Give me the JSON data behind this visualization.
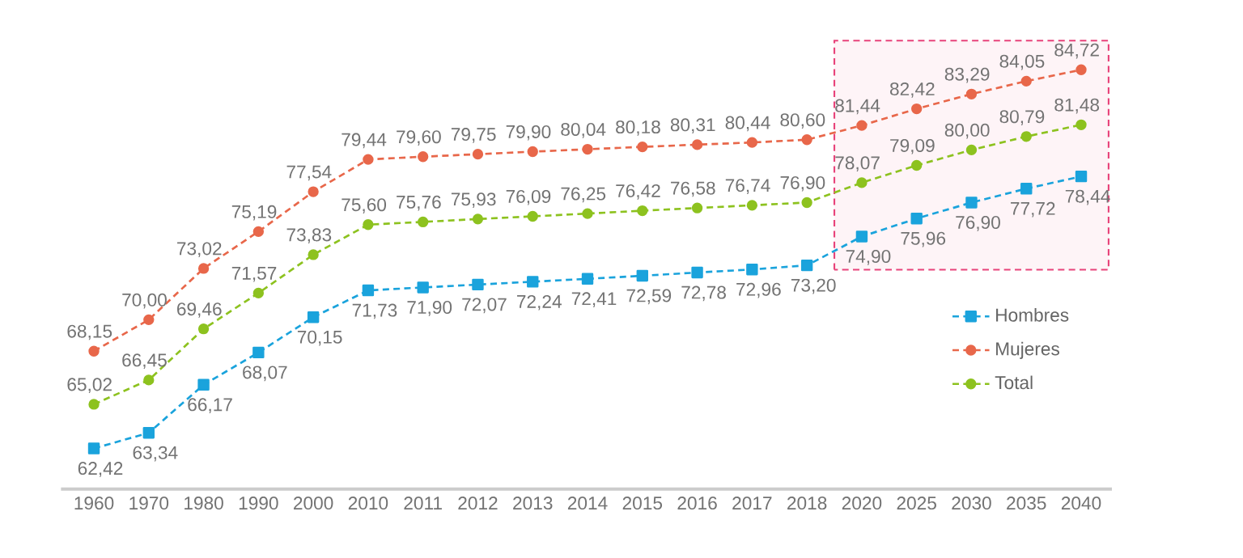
{
  "chart_data": {
    "type": "line",
    "categories": [
      "1960",
      "1970",
      "1980",
      "1990",
      "2000",
      "2010",
      "2011",
      "2012",
      "2013",
      "2014",
      "2015",
      "2016",
      "2017",
      "2018",
      "2020",
      "2025",
      "2030",
      "2035",
      "2040"
    ],
    "series": [
      {
        "name": "Hombres",
        "color": "#1aa3dc",
        "marker": "square",
        "values": [
          62.42,
          63.34,
          66.17,
          68.07,
          70.15,
          71.73,
          71.9,
          72.07,
          72.24,
          72.41,
          72.59,
          72.78,
          72.96,
          73.2,
          74.9,
          75.96,
          76.9,
          77.72,
          78.44
        ],
        "value_labels": [
          "62,42",
          "63,34",
          "66,17",
          "68,07",
          "70,15",
          "71,73",
          "71,90",
          "72,07",
          "72,24",
          "72,41",
          "72,59",
          "72,78",
          "72,96",
          "73,20",
          "74,90",
          "75,96",
          "76,90",
          "77,72",
          "78,44"
        ]
      },
      {
        "name": "Mujeres",
        "color": "#e8674a",
        "marker": "circle",
        "values": [
          68.15,
          70.0,
          73.02,
          75.19,
          77.54,
          79.44,
          79.6,
          79.75,
          79.9,
          80.04,
          80.18,
          80.31,
          80.44,
          80.6,
          81.44,
          82.42,
          83.29,
          84.05,
          84.72
        ],
        "value_labels": [
          "68,15",
          "70,00",
          "73,02",
          "75,19",
          "77,54",
          "79,44",
          "79,60",
          "79,75",
          "79,90",
          "80,04",
          "80,18",
          "80,31",
          "80,44",
          "80,60",
          "81,44",
          "82,42",
          "83,29",
          "84,05",
          "84,72"
        ]
      },
      {
        "name": "Total",
        "color": "#8dc21f",
        "marker": "circle",
        "values": [
          65.02,
          66.45,
          69.46,
          71.57,
          73.83,
          75.6,
          75.76,
          75.93,
          76.09,
          76.25,
          76.42,
          76.58,
          76.74,
          76.9,
          78.07,
          79.09,
          80.0,
          80.79,
          81.48
        ],
        "value_labels": [
          "65,02",
          "66,45",
          "69,46",
          "71,57",
          "73,83",
          "75,60",
          "75,76",
          "75,93",
          "76,09",
          "76,25",
          "76,42",
          "76,58",
          "76,74",
          "76,90",
          "78,07",
          "79,09",
          "80,00",
          "80,79",
          "81,48"
        ]
      }
    ],
    "bands": [
      {
        "axis": "x",
        "from": "2020",
        "to": "2040",
        "color": "#e8437a"
      }
    ],
    "line_style": "dashed",
    "legend": "right",
    "grid": false
  }
}
